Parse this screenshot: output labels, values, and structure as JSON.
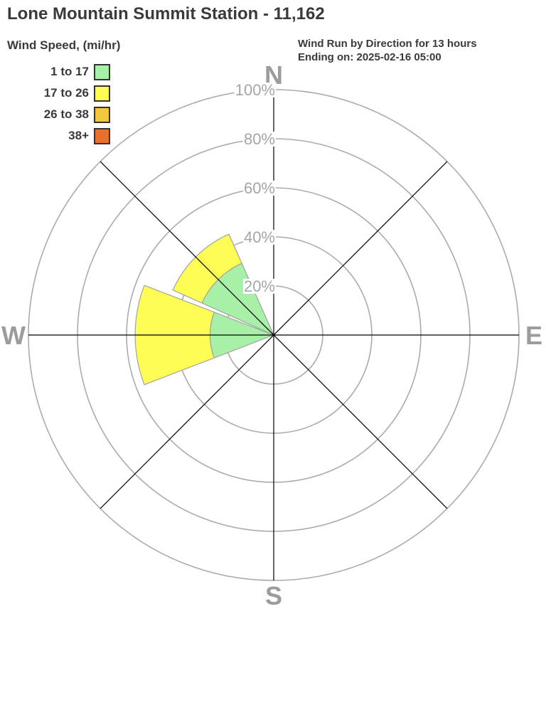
{
  "header": {
    "title": "Lone Mountain Summit Station - 11,162",
    "right_line1": "Wind Run by Direction for 13 hours",
    "right_line2": "Ending on: 2025-02-16 05:00"
  },
  "legend": {
    "title": "Wind Speed, (mi/hr)",
    "items": [
      {
        "label": "1 to 17",
        "color": "#a8f0a8"
      },
      {
        "label": "17 to 26",
        "color": "#fdfd55"
      },
      {
        "label": "26 to 38",
        "color": "#f2c53d"
      },
      {
        "label": "38+",
        "color": "#e8702e"
      }
    ]
  },
  "chart_data": {
    "type": "wind_rose",
    "title": "Wind Run by Direction for 13 hours",
    "subtitle": "Ending on: 2025-02-16 05:00",
    "units": "percent of wind run",
    "ring_ticks_percent": [
      20,
      40,
      60,
      80,
      100
    ],
    "ring_label_suffix": "%",
    "sector_width_deg": 42,
    "speed_bins": [
      "1 to 17",
      "17 to 26",
      "26 to 38",
      "38+"
    ],
    "bin_colors": [
      "#a8f0a8",
      "#fdfd55",
      "#f2c53d",
      "#e8702e"
    ],
    "compass_labels": [
      {
        "label": "N",
        "deg": 0
      },
      {
        "label": "E",
        "deg": 90
      },
      {
        "label": "S",
        "deg": 180
      },
      {
        "label": "W",
        "deg": 270
      }
    ],
    "directions": [
      {
        "dir": "N",
        "deg": 0,
        "values": [
          0,
          0,
          0,
          0
        ]
      },
      {
        "dir": "NE",
        "deg": 45,
        "values": [
          0,
          0,
          0,
          0
        ]
      },
      {
        "dir": "E",
        "deg": 90,
        "values": [
          0,
          0,
          0,
          0
        ]
      },
      {
        "dir": "SE",
        "deg": 135,
        "values": [
          0,
          0,
          0,
          0
        ]
      },
      {
        "dir": "S",
        "deg": 180,
        "values": [
          0,
          0,
          0,
          0
        ]
      },
      {
        "dir": "SW",
        "deg": 225,
        "values": [
          0,
          0,
          0,
          0
        ]
      },
      {
        "dir": "W",
        "deg": 270,
        "values": [
          26,
          30.5,
          0,
          0
        ]
      },
      {
        "dir": "NW",
        "deg": 315,
        "values": [
          32,
          13,
          0,
          0
        ]
      }
    ],
    "colors": {
      "grid_ring": "#ababab",
      "axis_line": "#000000",
      "compass_label": "#9c9c9c",
      "ring_label": "#a5a5a5",
      "wedge_stroke": "#a3a3a3",
      "text_dark": "#3a3a3a"
    }
  }
}
